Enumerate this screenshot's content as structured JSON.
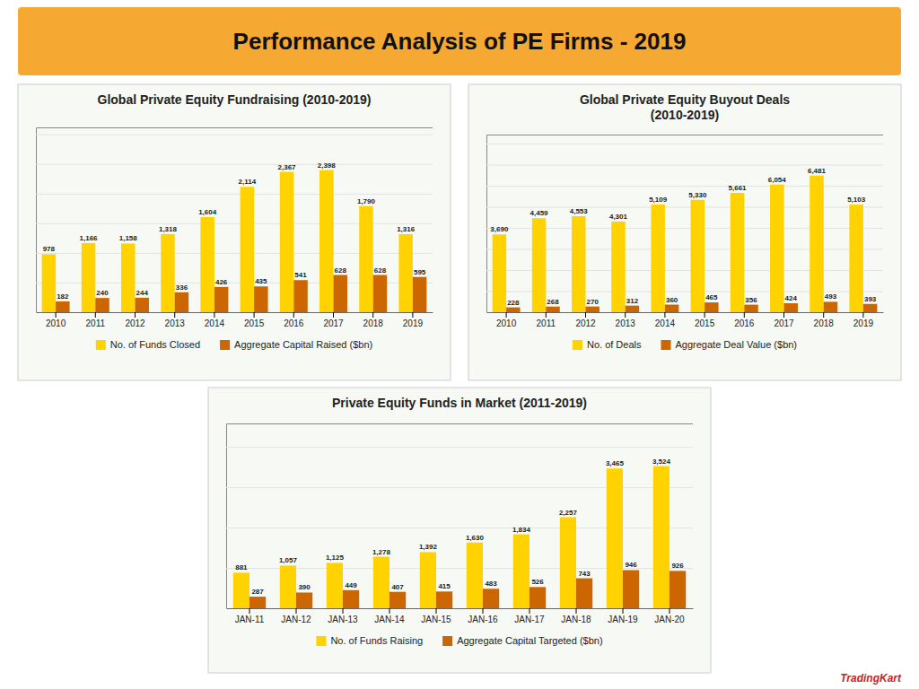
{
  "title": "Performance Analysis of PE Firms - 2019",
  "annotations": [
    "TradingKart"
  ],
  "chart_data": [
    {
      "type": "bar",
      "title": "Global Private Equity Fundraising (2010-2019)",
      "categories": [
        "2010",
        "2011",
        "2012",
        "2013",
        "2014",
        "2015",
        "2016",
        "2017",
        "2018",
        "2019"
      ],
      "series": [
        {
          "name": "No. of Funds Closed",
          "color": "#FFD200",
          "values": [
            978,
            1166,
            1158,
            1318,
            1604,
            2114,
            2367,
            2398,
            1790,
            1316
          ],
          "value_labels": [
            "978",
            "1,166",
            "1,158",
            "1,318",
            "1,604",
            "2,114",
            "2,367",
            "2,398",
            "1,790",
            "1,316"
          ]
        },
        {
          "name": "Aggregate Capital Raised ($bn)",
          "color": "#CC6600",
          "values": [
            182,
            240,
            244,
            336,
            426,
            435,
            541,
            628,
            628,
            595
          ]
        }
      ],
      "ylim": [
        0,
        3117.4
      ],
      "yticks": [
        0,
        500,
        1000,
        1500,
        2000,
        2500,
        3000
      ],
      "grid": true,
      "data_labels": true,
      "tick_labels": "x",
      "legend": "bottom"
    },
    {
      "type": "bar",
      "title": "Global Private Equity Buyout Deals\n(2010-2019)",
      "categories": [
        "2010",
        "2011",
        "2012",
        "2013",
        "2014",
        "2015",
        "2016",
        "2017",
        "2018",
        "2019"
      ],
      "series": [
        {
          "name": "No. of Deals",
          "color": "#FFD200",
          "values": [
            3690,
            4459,
            4553,
            4301,
            5109,
            5330,
            5661,
            6054,
            6481,
            5103
          ],
          "value_labels": [
            "3,690",
            "4,459",
            "4,553",
            "4,301",
            "5,109",
            "5,330",
            "5,661",
            "6,054",
            "6,481",
            "5,103"
          ]
        },
        {
          "name": "Aggregate Deal Value ($bn)",
          "color": "#CC6600",
          "values": [
            228,
            268,
            270,
            312,
            360,
            465,
            356,
            424,
            493,
            393
          ]
        }
      ],
      "ylim": [
        0,
        8425.3
      ],
      "yticks": [
        0,
        1000,
        2000,
        3000,
        4000,
        5000,
        6000,
        7000,
        8000
      ],
      "grid": true,
      "data_labels": true,
      "tick_labels": "x",
      "legend": "bottom"
    },
    {
      "type": "bar",
      "title": "Private Equity Funds in Market (2011-2019)",
      "categories": [
        "JAN-11",
        "JAN-12",
        "JAN-13",
        "JAN-14",
        "JAN-15",
        "JAN-16",
        "JAN-17",
        "JAN-18",
        "JAN-19",
        "JAN-20"
      ],
      "series": [
        {
          "name": "No. of Funds Raising",
          "color": "#FFD200",
          "values": [
            881,
            1057,
            1125,
            1278,
            1392,
            1630,
            1834,
            2257,
            3465,
            3524
          ],
          "value_labels": [
            "881",
            "1,057",
            "1,125",
            "1,278",
            "1,392",
            "1,630",
            "1,834",
            "2,257",
            "3,465",
            "3,524"
          ]
        },
        {
          "name": "Aggregate Capital Targeted ($bn)",
          "color": "#CC6600",
          "values": [
            287,
            390,
            449,
            407,
            415,
            483,
            526,
            743,
            946,
            926
          ]
        }
      ],
      "ylim": [
        0,
        4581.2
      ],
      "yticks": [
        0,
        1000,
        2000,
        3000,
        4000
      ],
      "grid": true,
      "data_labels": true,
      "tick_labels": "x",
      "legend": "bottom"
    }
  ]
}
